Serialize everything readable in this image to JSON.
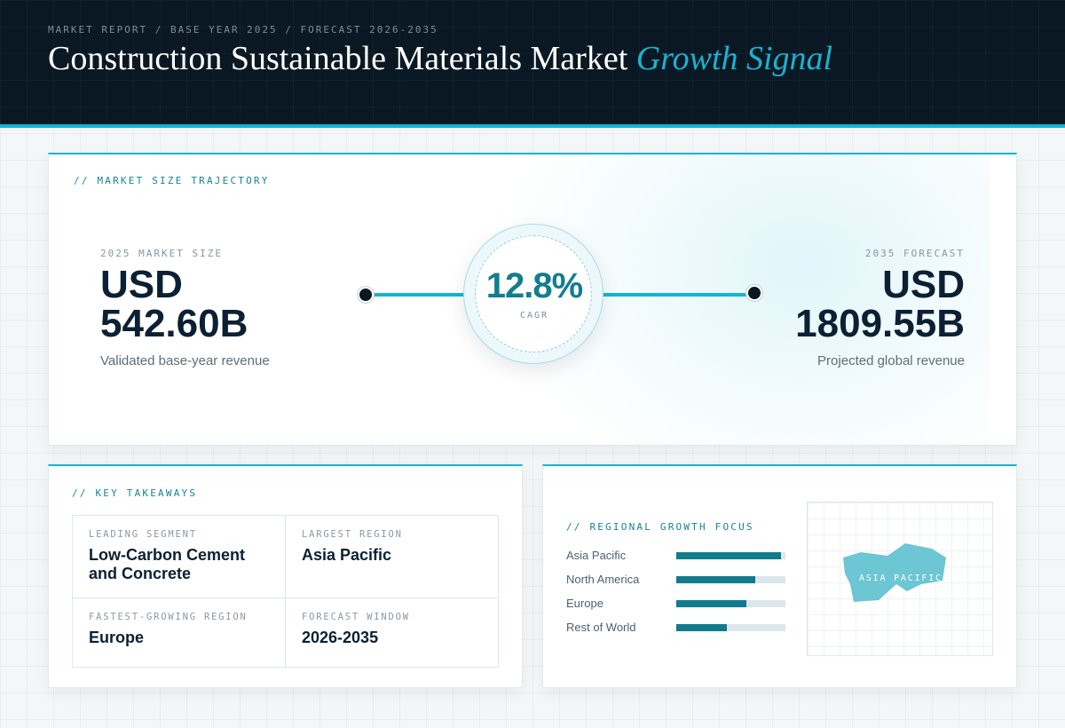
{
  "header": {
    "breadcrumb": "MARKET REPORT / BASE YEAR 2025 / FORECAST 2026-2035",
    "title_main": "Construction Sustainable Materials Market ",
    "title_accent": "Growth Signal"
  },
  "trajectory": {
    "section_label": "// MARKET SIZE TRAJECTORY",
    "start": {
      "label": "2025 MARKET SIZE",
      "currency": "USD",
      "value": "542.60B",
      "caption": "Validated base-year revenue"
    },
    "cagr": {
      "value": "12.8%",
      "label": "CAGR"
    },
    "end": {
      "label": "2035 FORECAST",
      "currency": "USD",
      "value": "1809.55B",
      "caption": "Projected global revenue"
    }
  },
  "takeaways": {
    "section_label": "// KEY TAKEAWAYS",
    "items": [
      {
        "label": "LEADING SEGMENT",
        "value": "Low-Carbon Cement and Concrete"
      },
      {
        "label": "LARGEST REGION",
        "value": "Asia Pacific"
      },
      {
        "label": "FASTEST-GROWING REGION",
        "value": "Europe"
      },
      {
        "label": "FORECAST WINDOW",
        "value": "2026-2035"
      }
    ]
  },
  "regional": {
    "section_label": "// REGIONAL GROWTH FOCUS",
    "regions": [
      {
        "name": "Asia Pacific",
        "share": 0.96
      },
      {
        "name": "North America",
        "share": 0.72
      },
      {
        "name": "Europe",
        "share": 0.64
      },
      {
        "name": "Rest of World",
        "share": 0.46
      }
    ],
    "map_label": "ASIA PACIFIC",
    "map_color": "#6cc6d3"
  },
  "colors": {
    "accent": "#12b5d3",
    "header_bg": "#0a1824",
    "bar_fill": "#0f7b8c",
    "cagr_text": "#137d90"
  }
}
